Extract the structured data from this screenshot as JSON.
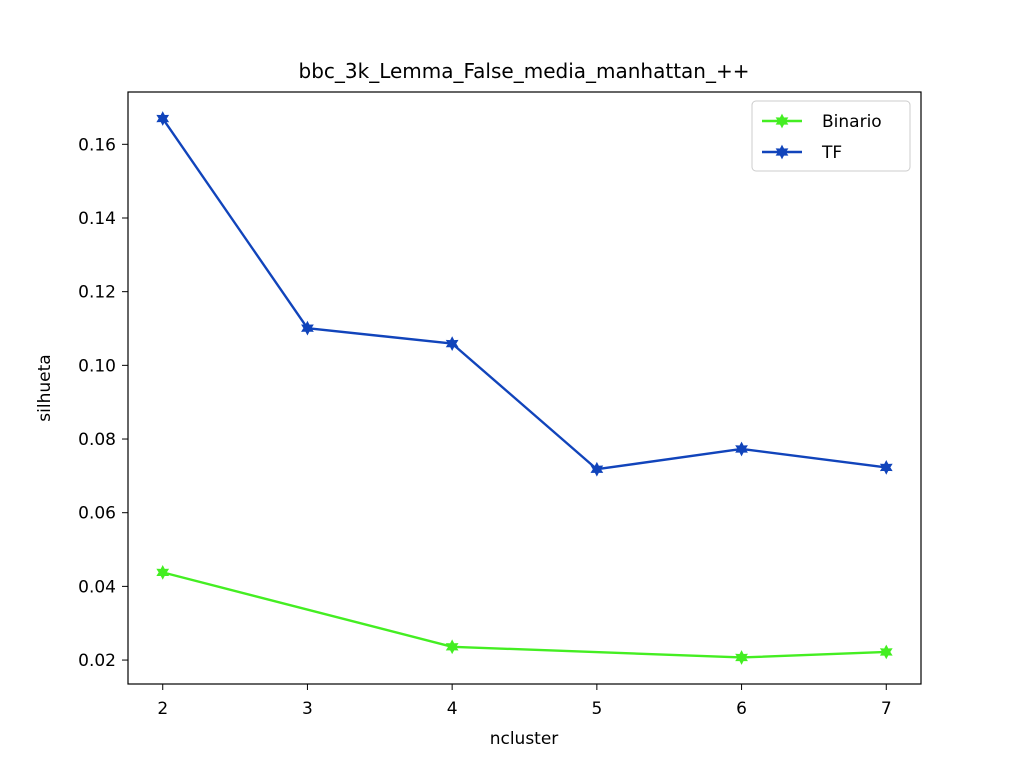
{
  "chart_data": {
    "type": "line",
    "title": "bbc_3k_Lemma_False_media_manhattan_++",
    "xlabel": "ncluster",
    "ylabel": "silhueta",
    "x": [
      2,
      3,
      4,
      5,
      6,
      7
    ],
    "xticks": [
      "2",
      "3",
      "4",
      "5",
      "6",
      "7"
    ],
    "yticks": [
      "0.02",
      "0.04",
      "0.06",
      "0.08",
      "0.10",
      "0.12",
      "0.14",
      "0.16"
    ],
    "xlim": [
      1.76,
      7.24
    ],
    "ylim": [
      0.0135,
      0.1742
    ],
    "grid": false,
    "legend_position": "top-right",
    "series": [
      {
        "name": "Binario",
        "color": "#44ee22",
        "marker": "star",
        "values": [
          0.0438,
          null,
          0.0236,
          null,
          0.0207,
          0.0222
        ]
      },
      {
        "name": "TF",
        "color": "#1144bb",
        "marker": "star",
        "values": [
          0.167,
          0.1101,
          0.1059,
          0.0718,
          0.0773,
          0.0723
        ]
      }
    ]
  }
}
